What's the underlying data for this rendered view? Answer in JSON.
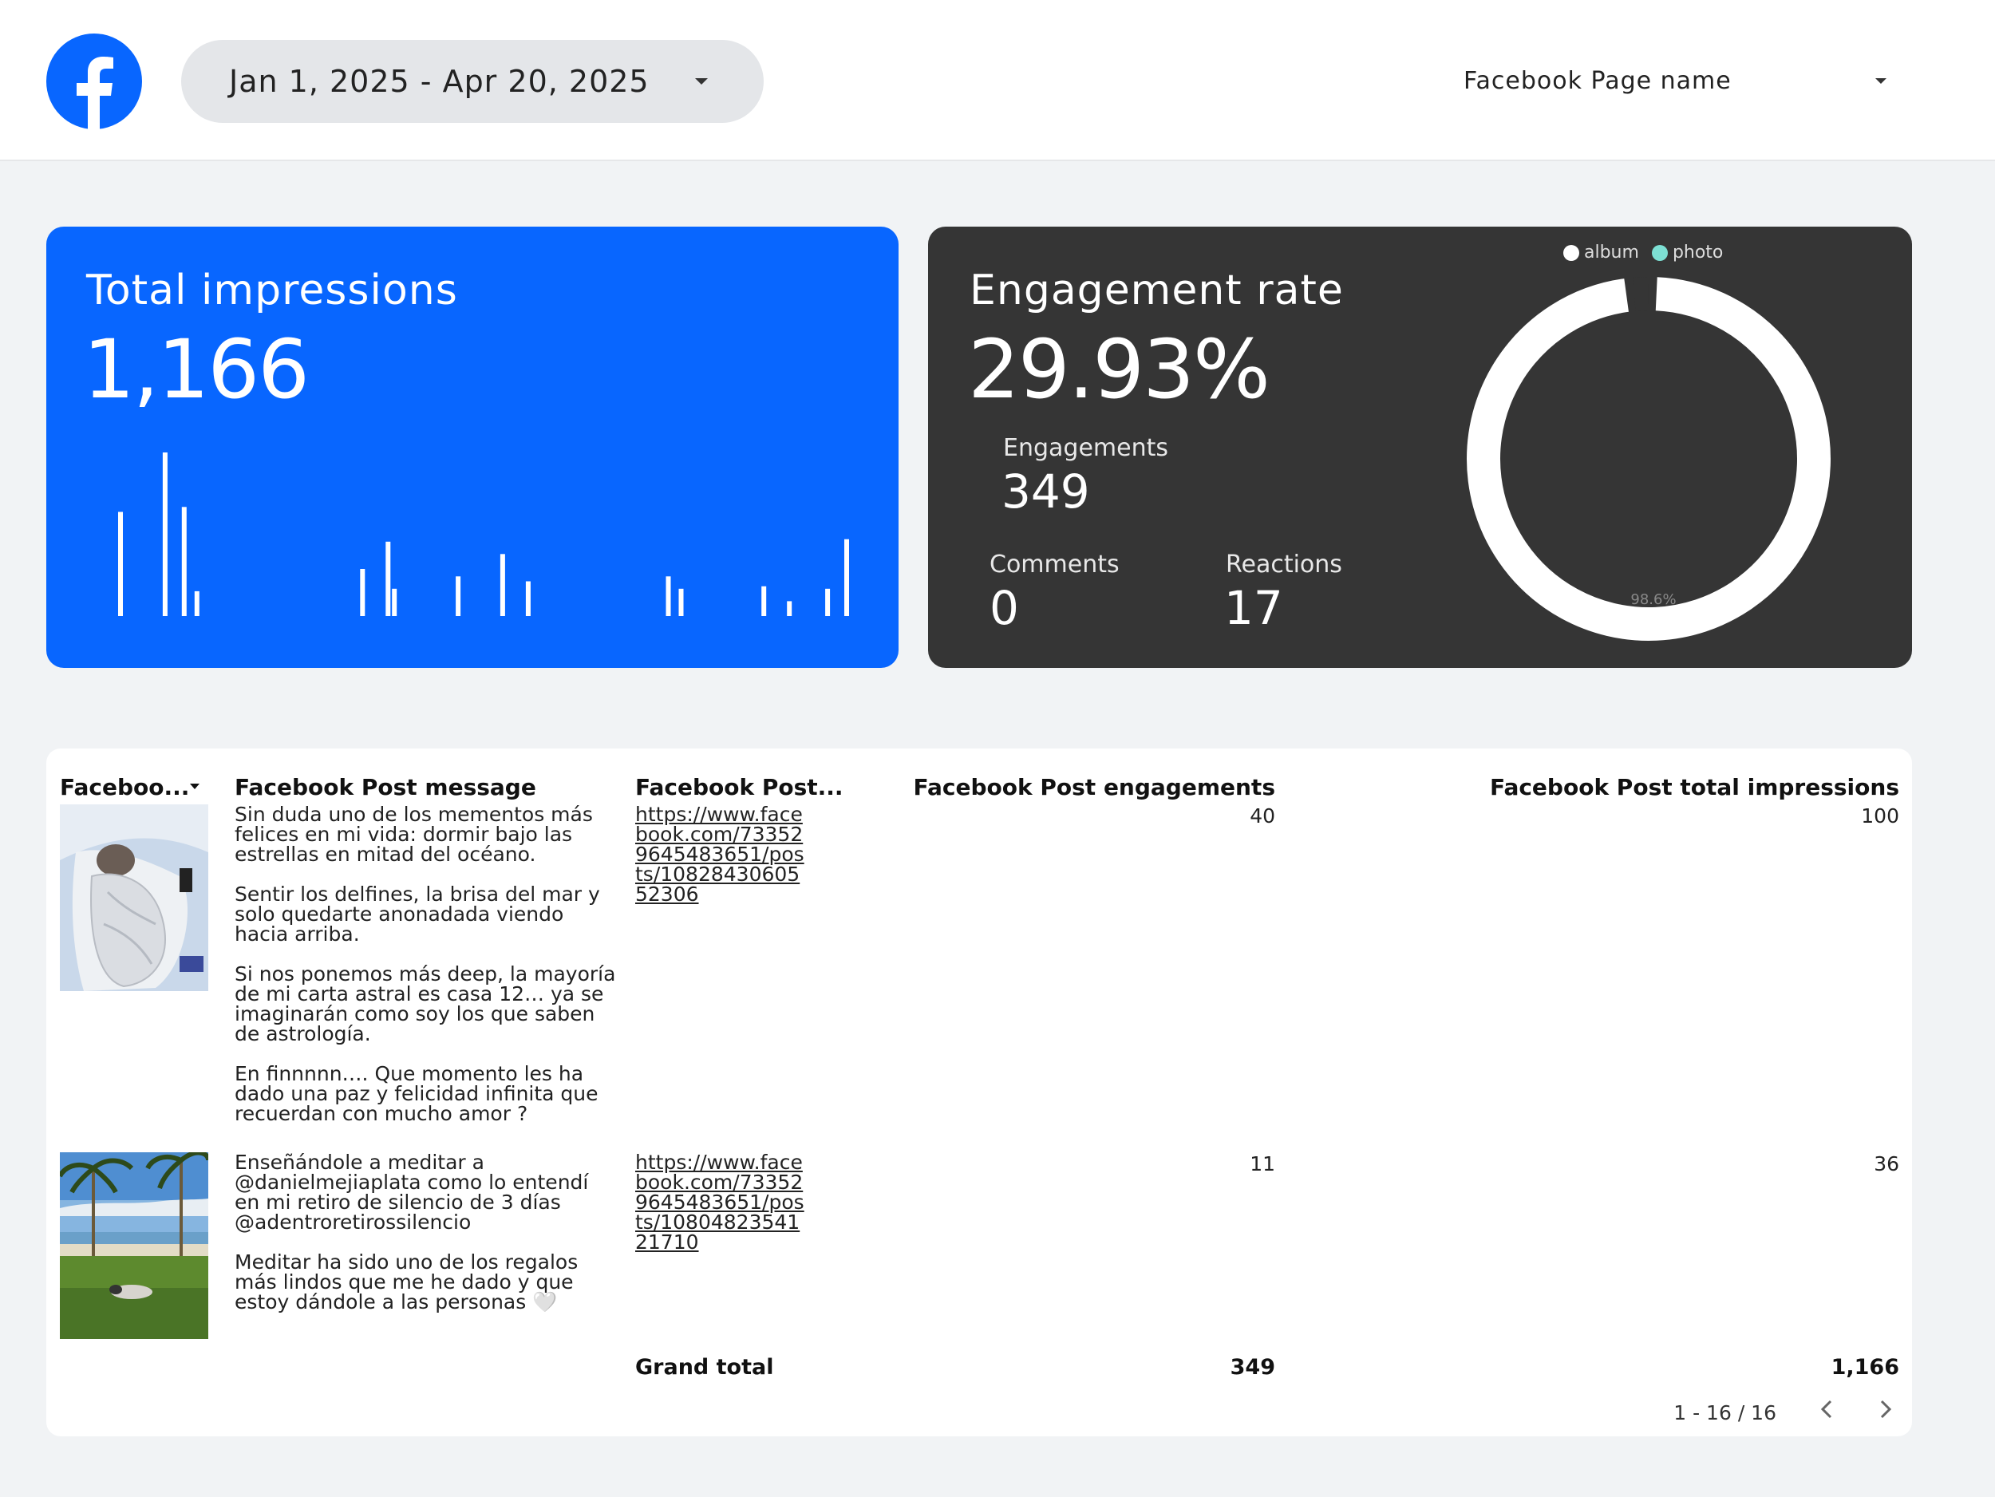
{
  "header": {
    "date_range": "Jan 1, 2025 - Apr 20, 2025",
    "page_selector": "Facebook Page name",
    "logo_icon": "facebook-logo-icon"
  },
  "impressions": {
    "title": "Total impressions",
    "value": "1,166",
    "color": "#0866ff"
  },
  "engagement": {
    "title": "Engagement rate",
    "rate": "29.93%",
    "engagements_label": "Engagements",
    "engagements_value": "349",
    "comments_label": "Comments",
    "comments_value": "0",
    "reactions_label": "Reactions",
    "reactions_value": "17",
    "legend": [
      {
        "label": "album",
        "color": "#ffffff"
      },
      {
        "label": "photo",
        "color": "#7de0d4"
      }
    ],
    "donut_label": "98.6%"
  },
  "chart_data": [
    {
      "type": "bar",
      "title": "",
      "values": [
        42,
        0,
        0,
        0,
        0,
        0,
        0,
        66,
        0,
        0,
        44,
        0,
        10,
        0,
        0,
        0,
        0,
        0,
        0,
        0,
        0,
        0,
        0,
        0,
        0,
        0,
        0,
        0,
        0,
        0,
        0,
        0,
        0,
        0,
        0,
        0,
        0,
        0,
        19,
        0,
        0,
        0,
        30,
        11,
        0,
        0,
        0,
        0,
        0,
        0,
        0,
        0,
        0,
        16,
        0,
        0,
        0,
        0,
        0,
        0,
        25,
        0,
        0,
        0,
        14,
        0,
        0,
        0,
        0,
        0,
        0,
        0,
        0,
        0,
        0,
        0,
        0,
        0,
        0,
        0,
        0,
        0,
        0,
        0,
        0,
        0,
        16,
        0,
        11,
        0,
        0,
        0,
        0,
        0,
        0,
        0,
        0,
        0,
        0,
        0,
        0,
        12,
        0,
        0,
        0,
        6,
        0,
        0,
        0,
        0,
        0,
        11,
        0,
        0,
        31
      ],
      "color": "#ffffff"
    },
    {
      "type": "pie",
      "title": "",
      "categories": [
        "album",
        "photo"
      ],
      "values": [
        98.6,
        1.4
      ],
      "labels": [
        "98.6%"
      ]
    }
  ],
  "table": {
    "columns": [
      "Faceboo...",
      "Facebook Post message",
      "Facebook Post...",
      "Facebook Post engagements",
      "Facebook Post total impressions"
    ],
    "rows": [
      {
        "message": [
          "Sin duda uno de los mementos más felices en mi vida: dormir bajo las estrellas en mitad del océano.",
          "Sentir los delfines, la brisa del mar y solo quedarte anonadada viendo hacia arriba.",
          "Si nos ponemos más deep, la mayoría de mi carta astral es casa 12… ya se imaginarán como soy los que saben de astrología.",
          "En finnnnn…. Que momento les ha dado una paz y felicidad infinita que recuerdan con mucho amor ?"
        ],
        "link": "https://www.facebook.com/733529645483651/posts/1082843060552306",
        "engagements": "40",
        "impressions": "100"
      },
      {
        "message": [
          "Enseñándole a meditar a @danielmejiaplata como lo entendí en mi retiro de silencio de 3 días @adentroretirossilencio",
          "Meditar ha sido uno de los regalos más lindos que me he dado y que estoy dándole a las personas 🤍"
        ],
        "link": "https://www.facebook.com/733529645483651/posts/1080482354121710",
        "engagements": "11",
        "impressions": "36"
      }
    ],
    "grand_total_label": "Grand total",
    "grand_total_engagements": "349",
    "grand_total_impressions": "1,166",
    "pagination": "1 - 16 / 16"
  }
}
